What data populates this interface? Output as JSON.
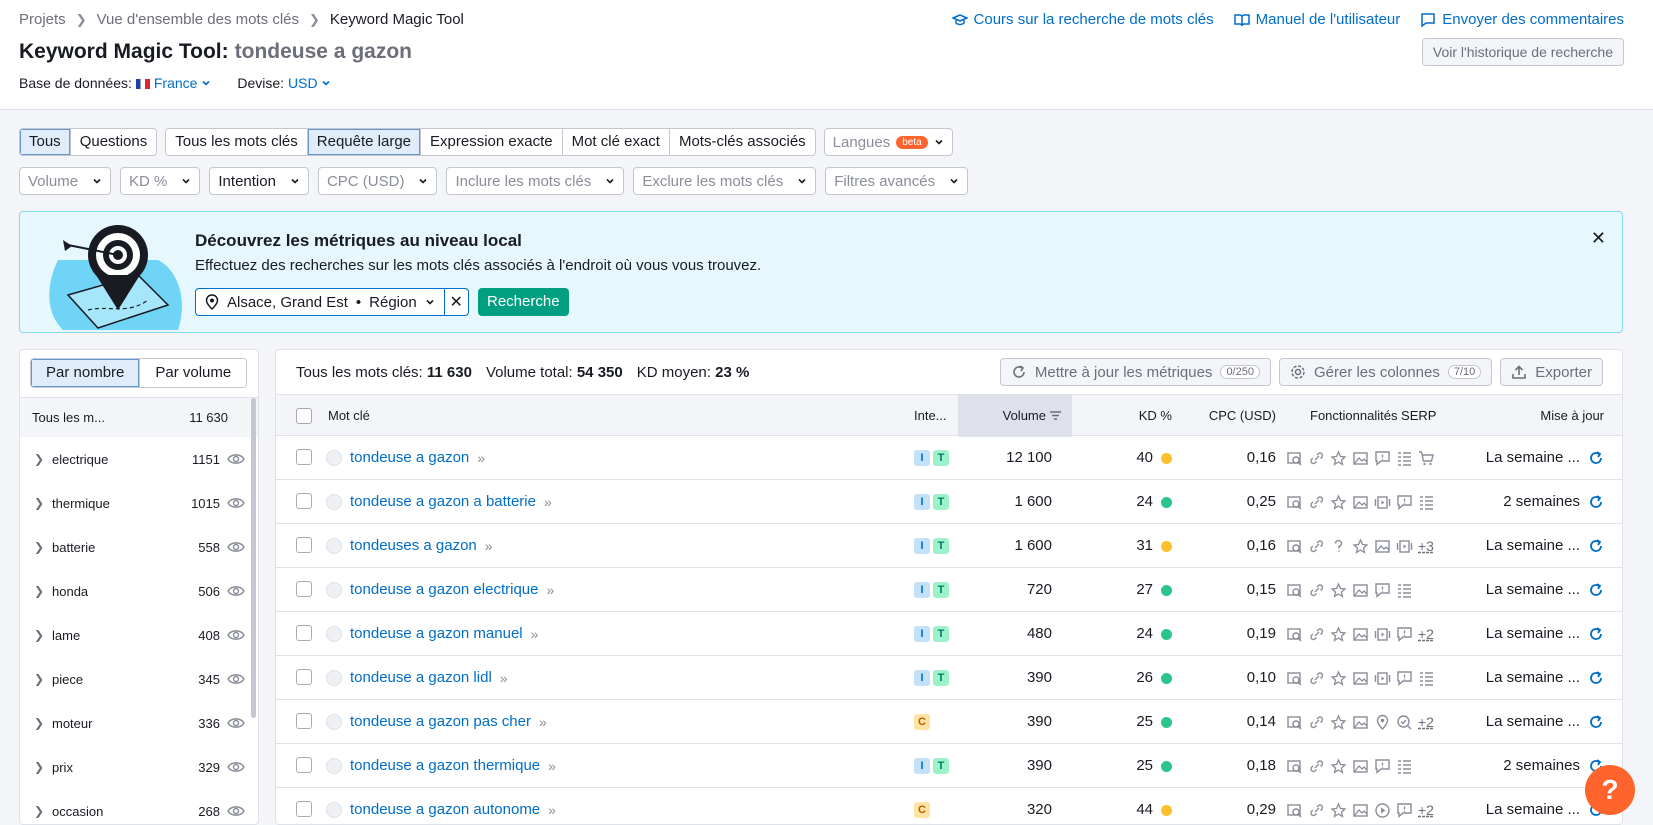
{
  "breadcrumb": [
    "Projets",
    "Vue d'ensemble des mots clés",
    "Keyword Magic Tool"
  ],
  "top_links": {
    "course": "Cours sur la recherche de mots clés",
    "manual": "Manuel de l'utilisateur",
    "feedback": "Envoyer des commentaires"
  },
  "title": {
    "tool": "Keyword Magic Tool:",
    "query": "tondeuse a gazon"
  },
  "history_button": "Voir l'historique de recherche",
  "database": {
    "label": "Base de données:",
    "value": "France"
  },
  "currency": {
    "label": "Devise:",
    "value": "USD"
  },
  "tabs_left": [
    "Tous",
    "Questions"
  ],
  "tabs_match": [
    "Tous les mots clés",
    "Requête large",
    "Expression exacte",
    "Mot clé exact",
    "Mots-clés associés"
  ],
  "languages": {
    "label": "Langues",
    "badge": "beta"
  },
  "filters": [
    "Volume",
    "KD %",
    "Intention",
    "CPC (USD)",
    "Inclure les mots clés",
    "Exclure les mots clés",
    "Filtres avancés"
  ],
  "banner": {
    "title": "Découvrez les métriques au niveau local",
    "text": "Effectuez des recherches sur les mots clés associés à l'endroit où vous vous trouvez.",
    "location": "Alsace, Grand Est",
    "location_type": "Région",
    "search_button": "Recherche"
  },
  "left_panel": {
    "toggle": [
      "Par nombre",
      "Par volume"
    ],
    "header_label": "Tous les m...",
    "header_count": "11 630",
    "groups": [
      {
        "name": "electrique",
        "count": "1151"
      },
      {
        "name": "thermique",
        "count": "1015"
      },
      {
        "name": "batterie",
        "count": "558"
      },
      {
        "name": "honda",
        "count": "506"
      },
      {
        "name": "lame",
        "count": "408"
      },
      {
        "name": "piece",
        "count": "345"
      },
      {
        "name": "moteur",
        "count": "336"
      },
      {
        "name": "prix",
        "count": "329"
      },
      {
        "name": "occasion",
        "count": "268"
      }
    ]
  },
  "summary": {
    "all_label": "Tous les mots clés:",
    "all_value": "11 630",
    "volume_label": "Volume total:",
    "volume_value": "54 350",
    "kd_label": "KD moyen:",
    "kd_value": "23 %"
  },
  "actions": {
    "update": "Mettre à jour les métriques",
    "update_count": "0/250",
    "columns": "Gérer les colonnes",
    "columns_count": "7/10",
    "export": "Exporter"
  },
  "columns": {
    "keyword": "Mot clé",
    "intent": "Inte...",
    "volume": "Volume",
    "kd": "KD %",
    "cpc": "CPC (USD)",
    "serp": "Fonctionnalités SERP",
    "updated": "Mise à jour"
  },
  "colors": {
    "kd_green": "#2bc48a",
    "kd_yellow": "#fdbf2d",
    "accent": "#006dca"
  },
  "rows": [
    {
      "keyword": "tondeuse a gazon",
      "intents": [
        "I",
        "T"
      ],
      "volume": "12 100",
      "kd": "40",
      "kd_color": "yellow",
      "cpc": "0,16",
      "serp": [
        "magnifier-icon",
        "link-icon",
        "star-icon",
        "image-icon",
        "review-icon",
        "list-icon",
        "cart-icon"
      ],
      "serp_more": "",
      "updated": "La semaine ..."
    },
    {
      "keyword": "tondeuse a gazon a batterie",
      "intents": [
        "I",
        "T"
      ],
      "volume": "1 600",
      "kd": "24",
      "kd_color": "green",
      "cpc": "0,25",
      "serp": [
        "magnifier-icon",
        "link-icon",
        "star-icon",
        "image-icon",
        "video-icon",
        "review-icon",
        "list-icon"
      ],
      "serp_more": "",
      "updated": "2 semaines"
    },
    {
      "keyword": "tondeuses a gazon",
      "intents": [
        "I",
        "T"
      ],
      "volume": "1 600",
      "kd": "31",
      "kd_color": "yellow",
      "cpc": "0,16",
      "serp": [
        "magnifier-icon",
        "link-icon",
        "question-icon",
        "star-icon",
        "image-icon",
        "video-icon"
      ],
      "serp_more": "+3",
      "updated": "La semaine ..."
    },
    {
      "keyword": "tondeuse a gazon electrique",
      "intents": [
        "I",
        "T"
      ],
      "volume": "720",
      "kd": "27",
      "kd_color": "green",
      "cpc": "0,15",
      "serp": [
        "magnifier-icon",
        "link-icon",
        "star-icon",
        "image-icon",
        "review-icon",
        "list-icon"
      ],
      "serp_more": "",
      "updated": "La semaine ..."
    },
    {
      "keyword": "tondeuse a gazon manuel",
      "intents": [
        "I",
        "T"
      ],
      "volume": "480",
      "kd": "24",
      "kd_color": "green",
      "cpc": "0,19",
      "serp": [
        "magnifier-icon",
        "link-icon",
        "star-icon",
        "image-icon",
        "video-icon",
        "review-icon"
      ],
      "serp_more": "+2",
      "updated": "La semaine ..."
    },
    {
      "keyword": "tondeuse a gazon lidl",
      "intents": [
        "I",
        "T"
      ],
      "volume": "390",
      "kd": "26",
      "kd_color": "green",
      "cpc": "0,10",
      "serp": [
        "magnifier-icon",
        "link-icon",
        "star-icon",
        "image-icon",
        "video-icon",
        "review-icon",
        "list-icon"
      ],
      "serp_more": "",
      "updated": "La semaine ..."
    },
    {
      "keyword": "tondeuse a gazon pas cher",
      "intents": [
        "C"
      ],
      "volume": "390",
      "kd": "25",
      "kd_color": "green",
      "cpc": "0,14",
      "serp": [
        "magnifier-icon",
        "link-icon",
        "star-icon",
        "image-icon",
        "pin-icon",
        "search-check-icon"
      ],
      "serp_more": "+2",
      "updated": "La semaine ..."
    },
    {
      "keyword": "tondeuse a gazon thermique",
      "intents": [
        "I",
        "T"
      ],
      "volume": "390",
      "kd": "25",
      "kd_color": "green",
      "cpc": "0,18",
      "serp": [
        "magnifier-icon",
        "link-icon",
        "star-icon",
        "image-icon",
        "review-icon",
        "list-icon"
      ],
      "serp_more": "",
      "updated": "2 semaines"
    },
    {
      "keyword": "tondeuse a gazon autonome",
      "intents": [
        "C"
      ],
      "volume": "320",
      "kd": "44",
      "kd_color": "yellow",
      "cpc": "0,29",
      "serp": [
        "magnifier-icon",
        "link-icon",
        "star-icon",
        "image-icon",
        "play-icon",
        "review-icon"
      ],
      "serp_more": "+2",
      "updated": "La semaine ..."
    }
  ],
  "help_button": "?"
}
